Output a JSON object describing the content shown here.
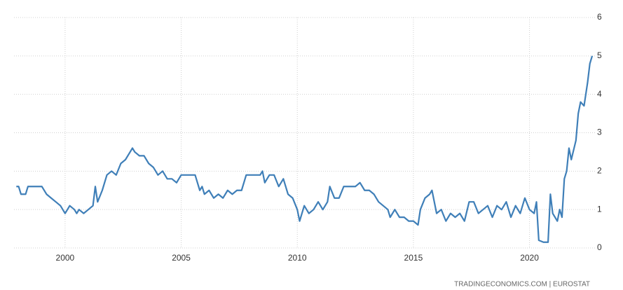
{
  "chart_data": {
    "type": "line",
    "x": [
      1997.9,
      1998.0,
      1998.1,
      1998.3,
      1998.4,
      1998.6,
      1998.8,
      1999.0,
      1999.2,
      1999.4,
      1999.6,
      1999.8,
      2000.0,
      2000.2,
      2000.4,
      2000.5,
      2000.6,
      2000.8,
      2001.0,
      2001.2,
      2001.3,
      2001.4,
      2001.6,
      2001.8,
      2002.0,
      2002.2,
      2002.4,
      2002.6,
      2002.8,
      2002.9,
      2003.0,
      2003.2,
      2003.4,
      2003.6,
      2003.8,
      2004.0,
      2004.2,
      2004.4,
      2004.6,
      2004.8,
      2005.0,
      2005.2,
      2005.4,
      2005.6,
      2005.8,
      2005.9,
      2006.0,
      2006.2,
      2006.4,
      2006.6,
      2006.8,
      2007.0,
      2007.2,
      2007.4,
      2007.6,
      2007.8,
      2008.0,
      2008.2,
      2008.4,
      2008.5,
      2008.6,
      2008.8,
      2009.0,
      2009.2,
      2009.4,
      2009.6,
      2009.8,
      2010.0,
      2010.1,
      2010.3,
      2010.5,
      2010.7,
      2010.9,
      2011.1,
      2011.3,
      2011.4,
      2011.6,
      2011.8,
      2012.0,
      2012.2,
      2012.5,
      2012.7,
      2012.9,
      2013.1,
      2013.3,
      2013.5,
      2013.7,
      2013.9,
      2014.0,
      2014.2,
      2014.4,
      2014.6,
      2014.8,
      2015.0,
      2015.2,
      2015.3,
      2015.5,
      2015.7,
      2015.8,
      2016.0,
      2016.2,
      2016.4,
      2016.6,
      2016.8,
      2017.0,
      2017.2,
      2017.4,
      2017.6,
      2017.8,
      2018.0,
      2018.2,
      2018.4,
      2018.6,
      2018.8,
      2019.0,
      2019.2,
      2019.4,
      2019.6,
      2019.8,
      2020.0,
      2020.2,
      2020.3,
      2020.4,
      2020.6,
      2020.8,
      2020.9,
      2021.0,
      2021.2,
      2021.3,
      2021.4,
      2021.5,
      2021.6,
      2021.7,
      2021.8,
      2022.0,
      2022.1,
      2022.2,
      2022.35,
      2022.5,
      2022.6,
      2022.7
    ],
    "series": [
      {
        "color": "#3f7fb8",
        "values": [
          1.6,
          1.6,
          1.4,
          1.4,
          1.6,
          1.6,
          1.6,
          1.6,
          1.4,
          1.3,
          1.2,
          1.1,
          0.9,
          1.1,
          1.0,
          0.9,
          1.0,
          0.9,
          1.0,
          1.1,
          1.6,
          1.2,
          1.5,
          1.9,
          2.0,
          1.9,
          2.2,
          2.3,
          2.5,
          2.6,
          2.5,
          2.4,
          2.4,
          2.2,
          2.1,
          1.9,
          2.0,
          1.8,
          1.8,
          1.7,
          1.9,
          1.9,
          1.9,
          1.9,
          1.5,
          1.6,
          1.4,
          1.5,
          1.3,
          1.4,
          1.3,
          1.5,
          1.4,
          1.5,
          1.5,
          1.9,
          1.9,
          1.9,
          1.9,
          2.0,
          1.7,
          1.9,
          1.9,
          1.6,
          1.8,
          1.4,
          1.3,
          1.0,
          0.7,
          1.1,
          0.9,
          1.0,
          1.2,
          1.0,
          1.2,
          1.6,
          1.3,
          1.3,
          1.6,
          1.6,
          1.6,
          1.7,
          1.5,
          1.5,
          1.4,
          1.2,
          1.1,
          1.0,
          0.8,
          1.0,
          0.8,
          0.8,
          0.7,
          0.7,
          0.6,
          1.0,
          1.3,
          1.4,
          1.5,
          0.9,
          1.0,
          0.7,
          0.9,
          0.8,
          0.9,
          0.7,
          1.2,
          1.2,
          0.9,
          1.0,
          1.1,
          0.8,
          1.1,
          1.0,
          1.2,
          0.8,
          1.1,
          0.9,
          1.3,
          1.0,
          0.9,
          1.2,
          0.2,
          0.15,
          0.15,
          1.4,
          0.9,
          0.7,
          1.0,
          0.8,
          1.8,
          2.0,
          2.6,
          2.3,
          2.8,
          3.5,
          3.8,
          3.7,
          4.3,
          4.8,
          5.0
        ]
      }
    ],
    "xlim": [
      1997.8,
      2022.85
    ],
    "xticks": [
      2000,
      2005,
      2010,
      2015,
      2020
    ],
    "ylim": [
      0,
      6
    ],
    "yticks": [
      0,
      1,
      2,
      3,
      4,
      5,
      6
    ],
    "grid": true,
    "source": "TRADINGECONOMICS.COM | EUROSTAT"
  }
}
